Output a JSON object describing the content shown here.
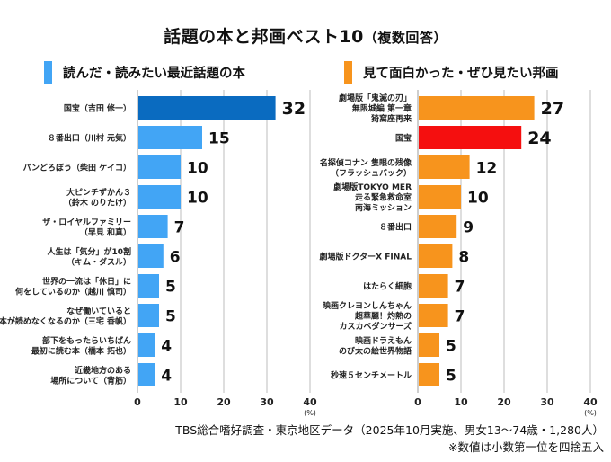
{
  "title": {
    "main": "話題の本と邦画ベスト10",
    "sub": "（複数回答）"
  },
  "colors": {
    "books": "#42A5F5",
    "books_top": "#0A6BC0",
    "movies": "#F7941D",
    "movies_highlight": "#F50F0F",
    "grid": "#BDBDBD"
  },
  "chart_data": [
    {
      "type": "bar",
      "orientation": "horizontal",
      "title": "読んだ・読みたい最近話題の本",
      "categories": [
        [
          "国宝（吉田 修一）"
        ],
        [
          "８番出口（川村 元気）"
        ],
        [
          "パンどろぼう（柴田 ケイコ）"
        ],
        [
          "大ピンチずかん３",
          "（鈴木 のりたけ）"
        ],
        [
          "ザ・ロイヤルファミリー",
          "（早見 和真）"
        ],
        [
          "人生は「気分」が10割",
          "（キム・ダスル）"
        ],
        [
          "世界の一流は「休日」に",
          "何をしているのか（越川 慎司）"
        ],
        [
          "なぜ働いていると",
          "本が読めなくなるのか（三宅 香帆）"
        ],
        [
          "部下をもったらいちばん",
          "最初に読む本（橋本 拓也）"
        ],
        [
          "近畿地方のある",
          "場所について（背筋）"
        ]
      ],
      "values": [
        32,
        15,
        10,
        10,
        7,
        6,
        5,
        5,
        4,
        4
      ],
      "highlight_index": 0,
      "xlim": [
        0,
        40
      ],
      "xticks": [
        "0",
        "10",
        "20",
        "30",
        "40"
      ],
      "xunit": "(%)",
      "grid": true
    },
    {
      "type": "bar",
      "orientation": "horizontal",
      "title": "見て面白かった・ぜひ見たい邦画",
      "categories": [
        [
          "劇場版「鬼滅の刃」",
          "無限城編 第一章",
          "猗窩座再来"
        ],
        [
          "国宝"
        ],
        [
          "名探偵コナン 隻眼の残像",
          "（フラッシュバック）"
        ],
        [
          "劇場版TOKYO MER",
          "走る緊急救命室",
          "南海ミッション"
        ],
        [
          "８番出口"
        ],
        [
          "劇場版ドクターX FINAL"
        ],
        [
          "はたらく細胞"
        ],
        [
          "映画クレヨンしんちゃん",
          "超華麗！灼熱の",
          "カスカベダンサーズ"
        ],
        [
          "映画ドラえもん",
          "のび太の絵世界物語"
        ],
        [
          "秒速５センチメートル"
        ]
      ],
      "values": [
        27,
        24,
        12,
        10,
        9,
        8,
        7,
        7,
        5,
        5
      ],
      "highlight_index": 1,
      "xlim": [
        0,
        40
      ],
      "xticks": [
        "0",
        "10",
        "20",
        "30",
        "40"
      ],
      "xunit": "(%)",
      "grid": true
    }
  ],
  "footer": {
    "source": "TBS総合嗜好調査・東京地区データ（2025年10月実施、男女13〜74歳・1,280人）",
    "note": "※数値は小数第一位を四捨五入"
  }
}
